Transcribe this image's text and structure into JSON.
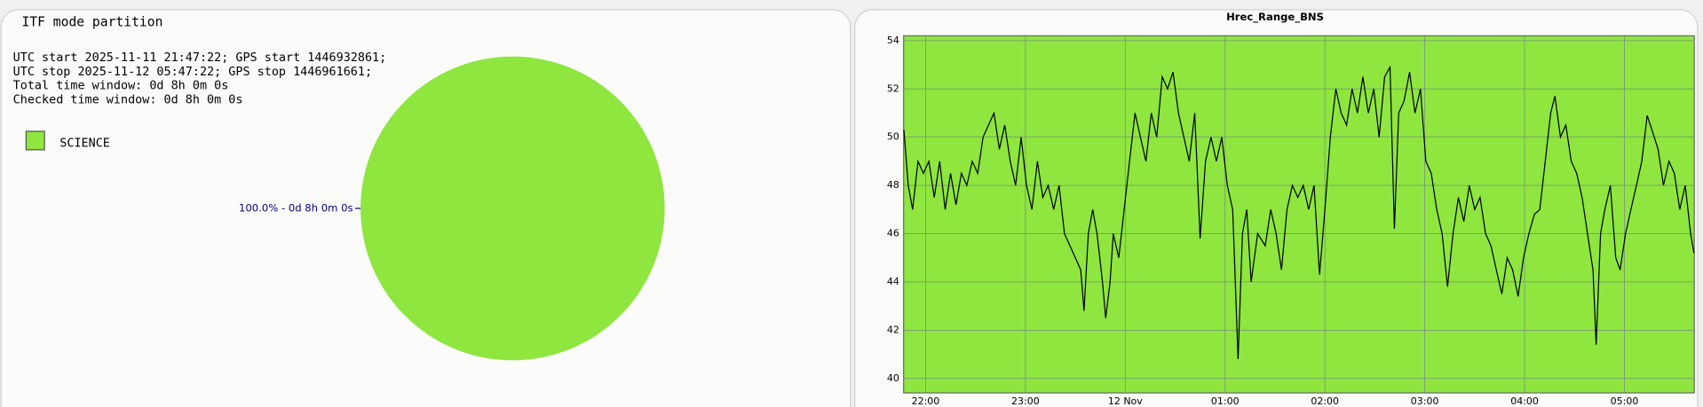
{
  "chart_data": [
    {
      "type": "pie",
      "title": "ITF mode partition",
      "annotations": [
        "UTC start 2025-11-11 21:47:22; GPS start 1446932861;",
        "UTC stop 2025-11-12 05:47:22; GPS stop 1446961661;",
        "Total time window: 0d 8h 0m 0s",
        "Checked time window: 0d 8h 0m 0s"
      ],
      "categories": [
        "SCIENCE"
      ],
      "values": [
        100
      ],
      "value_labels": [
        "100.0% - 0d 8h 0m 0s"
      ],
      "colors": [
        "#8ee63f"
      ],
      "legend": "upper left"
    },
    {
      "type": "line",
      "title": "Hrec_Range_BNS",
      "plot_background": "#8ee63f",
      "grid": true,
      "x": [
        21.783,
        21.826,
        21.87,
        21.924,
        21.978,
        22.033,
        22.087,
        22.141,
        22.196,
        22.25,
        22.304,
        22.359,
        22.413,
        22.467,
        22.522,
        22.576,
        22.63,
        22.685,
        22.739,
        22.793,
        22.848,
        22.902,
        22.957,
        23.011,
        23.065,
        23.12,
        23.174,
        23.228,
        23.283,
        23.337,
        23.391,
        23.446,
        23.5,
        23.554,
        23.587,
        23.63,
        23.674,
        23.717,
        23.772,
        23.804,
        23.848,
        23.88,
        23.935,
        23.989,
        24.043,
        24.098,
        24.152,
        24.207,
        24.261,
        24.315,
        24.37,
        24.424,
        24.478,
        24.533,
        24.587,
        24.641,
        24.696,
        24.75,
        24.804,
        24.859,
        24.913,
        24.967,
        25.022,
        25.076,
        25.13,
        25.174,
        25.217,
        25.261,
        25.326,
        25.402,
        25.457,
        25.511,
        25.565,
        25.62,
        25.674,
        25.728,
        25.783,
        25.837,
        25.891,
        25.946,
        26.0,
        26.054,
        26.109,
        26.163,
        26.217,
        26.272,
        26.326,
        26.38,
        26.435,
        26.489,
        26.543,
        26.598,
        26.652,
        26.696,
        26.739,
        26.793,
        26.848,
        26.902,
        26.957,
        27.011,
        27.065,
        27.12,
        27.174,
        27.228,
        27.283,
        27.337,
        27.391,
        27.446,
        27.5,
        27.554,
        27.609,
        27.663,
        27.717,
        27.772,
        27.826,
        27.88,
        27.935,
        27.989,
        28.043,
        28.098,
        28.152,
        28.207,
        28.261,
        28.304,
        28.359,
        28.413,
        28.467,
        28.522,
        28.576,
        28.63,
        28.685,
        28.717,
        28.761,
        28.804,
        28.859,
        28.913,
        28.957,
        29.011,
        29.065,
        29.12,
        29.174,
        29.228,
        29.283,
        29.337,
        29.391,
        29.446,
        29.5,
        29.554,
        29.609,
        29.663,
        29.696
      ],
      "series": [
        {
          "color": "#000000",
          "values": [
            50.3,
            48,
            47,
            49,
            48.5,
            49,
            47.5,
            49,
            47,
            48.5,
            47.2,
            48.5,
            48,
            49,
            48.5,
            50,
            50.5,
            51,
            49.5,
            50.5,
            49,
            48,
            50,
            48,
            47,
            49,
            47.5,
            48,
            47,
            48,
            46,
            45.5,
            45,
            44.5,
            42.8,
            46,
            47,
            46,
            44,
            42.5,
            44,
            46,
            45,
            47,
            49,
            51,
            50,
            49,
            51,
            50,
            52.5,
            52,
            52.7,
            51,
            50,
            49,
            51,
            45.8,
            49,
            50,
            49,
            50,
            48,
            47,
            40.8,
            46,
            47,
            44,
            46,
            45.5,
            47,
            46,
            44.5,
            47,
            48,
            47.5,
            48,
            47,
            48,
            44.3,
            47,
            50,
            52,
            51,
            50.5,
            52,
            51,
            52.5,
            51,
            52,
            50,
            52.5,
            52.9,
            46.2,
            51,
            51.5,
            52.7,
            51,
            52,
            49,
            48.5,
            47,
            46,
            43.8,
            46,
            47.5,
            46.5,
            48,
            47,
            47.5,
            46,
            45.5,
            44.5,
            43.5,
            45,
            44.5,
            43.4,
            45,
            46,
            46.8,
            47,
            49,
            51,
            51.7,
            50,
            50.5,
            49,
            48.5,
            47.5,
            46,
            44.5,
            41.4,
            46,
            47,
            48,
            45,
            44.5,
            46,
            47,
            48,
            49,
            50.9,
            50.2,
            49.5,
            48,
            49,
            48.5,
            47,
            48,
            46,
            45.2
          ]
        }
      ],
      "xlim": [
        21.78,
        29.7
      ],
      "xticks": [
        {
          "value": 22,
          "label": "22:00"
        },
        {
          "value": 23,
          "label": "23:00"
        },
        {
          "value": 24,
          "label": "12 Nov"
        },
        {
          "value": 25,
          "label": "01:00"
        },
        {
          "value": 26,
          "label": "02:00"
        },
        {
          "value": 27,
          "label": "03:00"
        },
        {
          "value": 28,
          "label": "04:00"
        },
        {
          "value": 29,
          "label": "05:00"
        }
      ],
      "ylim": [
        39.4,
        54.2
      ],
      "yticks": [
        40,
        42,
        44,
        46,
        48,
        50,
        52,
        54
      ]
    }
  ]
}
